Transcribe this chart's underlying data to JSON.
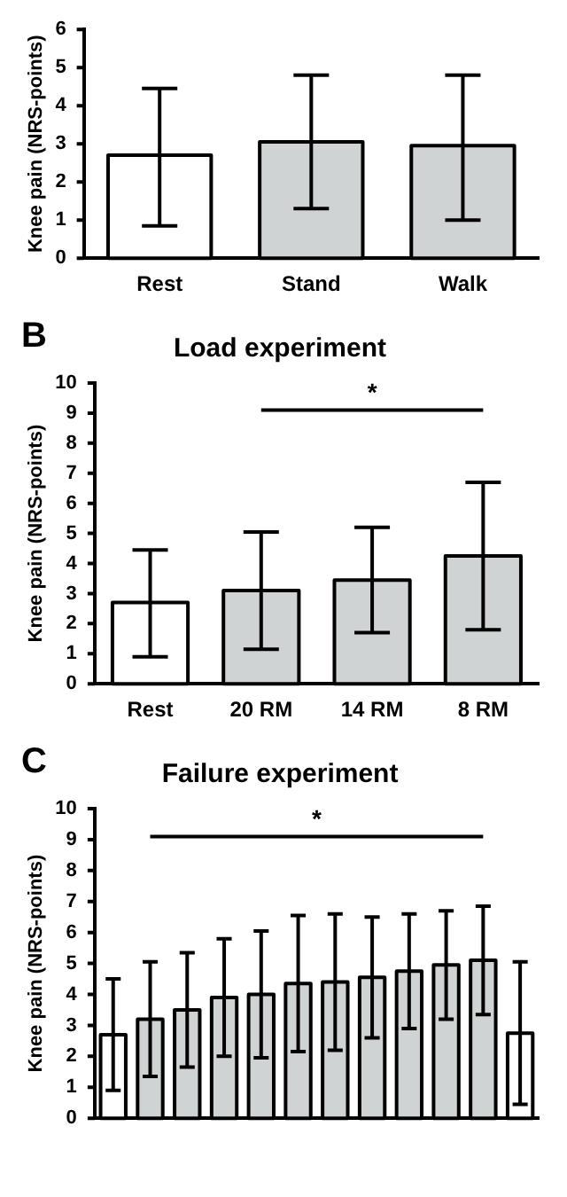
{
  "chart_data": [
    {
      "type": "bar",
      "ylabel": "Knee pain (NRS-points)",
      "categories": [
        "Rest",
        "Stand",
        "Walk"
      ],
      "values": [
        2.7,
        3.05,
        2.95
      ],
      "colors": [
        "#ffffff",
        "#d0d3d4",
        "#d0d3d4"
      ],
      "errors": [
        [
          0.85,
          4.45
        ],
        [
          1.3,
          4.8
        ],
        [
          1.0,
          4.8
        ]
      ],
      "ylim": [
        0,
        6
      ],
      "yticks": [
        0,
        1,
        2,
        3,
        4,
        5,
        6
      ],
      "grid": false,
      "legend": false
    },
    {
      "type": "bar",
      "title": "Load experiment",
      "ylabel": "Knee pain (NRS-points)",
      "annotations": [
        "B",
        "*"
      ],
      "categories": [
        "Rest",
        "20 RM",
        "14 RM",
        "8 RM"
      ],
      "values": [
        2.7,
        3.1,
        3.45,
        4.25
      ],
      "colors": [
        "#ffffff",
        "#d0d3d4",
        "#d0d3d4",
        "#d0d3d4"
      ],
      "errors": [
        [
          0.9,
          4.45
        ],
        [
          1.15,
          5.05
        ],
        [
          1.7,
          5.2
        ],
        [
          1.8,
          6.7
        ]
      ],
      "ylim": [
        0,
        10
      ],
      "yticks": [
        0,
        1,
        2,
        3,
        4,
        5,
        6,
        7,
        8,
        9,
        10
      ],
      "grid": false,
      "legend": false
    },
    {
      "type": "bar",
      "title": "Failure experiment",
      "ylabel": "Knee pain (NRS-points)",
      "annotations": [
        "C",
        "*"
      ],
      "categories": [
        null,
        null,
        null,
        null,
        null,
        null,
        null,
        null,
        null,
        null,
        null,
        null
      ],
      "values": [
        2.7,
        3.2,
        3.5,
        3.9,
        4.0,
        4.35,
        4.4,
        4.55,
        4.75,
        4.95,
        5.1,
        2.75
      ],
      "colors": [
        "#ffffff",
        "#d0d3d4",
        "#d0d3d4",
        "#d0d3d4",
        "#d0d3d4",
        "#d0d3d4",
        "#d0d3d4",
        "#d0d3d4",
        "#d0d3d4",
        "#d0d3d4",
        "#d0d3d4",
        "#ffffff"
      ],
      "errors": [
        1.8,
        1.85,
        1.85,
        1.9,
        2.05,
        2.2,
        2.2,
        1.95,
        1.85,
        1.75,
        1.75,
        2.3
      ],
      "ylim": [
        0,
        10
      ],
      "yticks": [
        0,
        1,
        2,
        3,
        4,
        5,
        6,
        7,
        8,
        9,
        10
      ],
      "grid": false,
      "legend": false
    }
  ]
}
